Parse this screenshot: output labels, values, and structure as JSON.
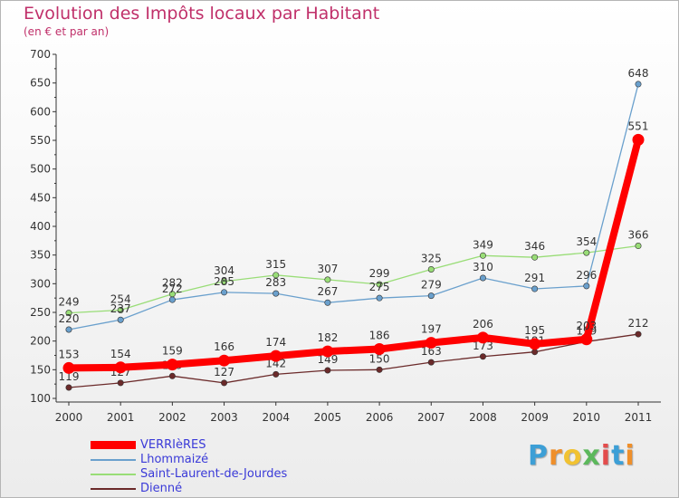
{
  "title": "Evolution des Impôts locaux par Habitant",
  "subtitle": "(en € et par an)",
  "logo": {
    "letters": [
      "P",
      "r",
      "o",
      "x",
      "i",
      "t",
      "i"
    ],
    "colors": [
      "#3d9fd6",
      "#ef8f2a",
      "#f1c232",
      "#5cb85c",
      "#e34c4c",
      "#3d9fd6",
      "#ef8f2a"
    ]
  },
  "chart_data": {
    "type": "line",
    "x": [
      "2000",
      "2001",
      "2002",
      "2003",
      "2004",
      "2005",
      "2006",
      "2007",
      "2008",
      "2009",
      "2010",
      "2011"
    ],
    "ylim": [
      100,
      700
    ],
    "yticks": [
      "100",
      "150",
      "200",
      "250",
      "300",
      "350",
      "400",
      "450",
      "500",
      "550",
      "600",
      "650",
      "700"
    ],
    "grid": "none",
    "legend_position": "bottom-left",
    "series": [
      {
        "name": "Dienné",
        "color": "#6b2a2a",
        "values": [
          119,
          127,
          139,
          127,
          142,
          149,
          150,
          163,
          173,
          181,
          199,
          212
        ],
        "labels": [
          "119",
          "127",
          "139",
          "127",
          "142",
          "149",
          "150",
          "163",
          "173",
          "181",
          "199",
          "212"
        ]
      },
      {
        "name": "Saint-Laurent-de-Jourdes",
        "color": "#99dd77",
        "values": [
          249,
          254,
          282,
          304,
          315,
          307,
          299,
          325,
          349,
          346,
          354,
          366
        ],
        "labels": [
          "249",
          "254",
          "282",
          "304",
          "315",
          "307",
          "299",
          "325",
          "349",
          "346",
          "354",
          "366"
        ]
      },
      {
        "name": "Lhommaizé",
        "color": "#6aa0cd",
        "values": [
          220,
          237,
          272,
          285,
          283,
          267,
          275,
          279,
          310,
          291,
          296,
          648
        ],
        "labels": [
          "220",
          "237",
          "272",
          "285",
          "283",
          "267",
          "275",
          "279",
          "310",
          "291",
          "296",
          "648"
        ]
      },
      {
        "name": "VERRIèRES",
        "color": "#ff0000",
        "values": [
          153,
          154,
          159,
          166,
          174,
          182,
          186,
          197,
          206,
          195,
          203,
          551
        ],
        "labels": [
          "153",
          "154",
          "159",
          "166",
          "174",
          "182",
          "186",
          "197",
          "206",
          "195",
          "203",
          "551"
        ]
      }
    ]
  },
  "legend": [
    {
      "label": "VERRIèRES",
      "color": "#ff0000",
      "style": "thick"
    },
    {
      "label": "Lhommaizé",
      "color": "#6aa0cd",
      "style": "thin"
    },
    {
      "label": "Saint-Laurent-de-Jourdes",
      "color": "#99dd77",
      "style": "thin"
    },
    {
      "label": "Dienné",
      "color": "#6b2a2a",
      "style": "thin"
    }
  ]
}
